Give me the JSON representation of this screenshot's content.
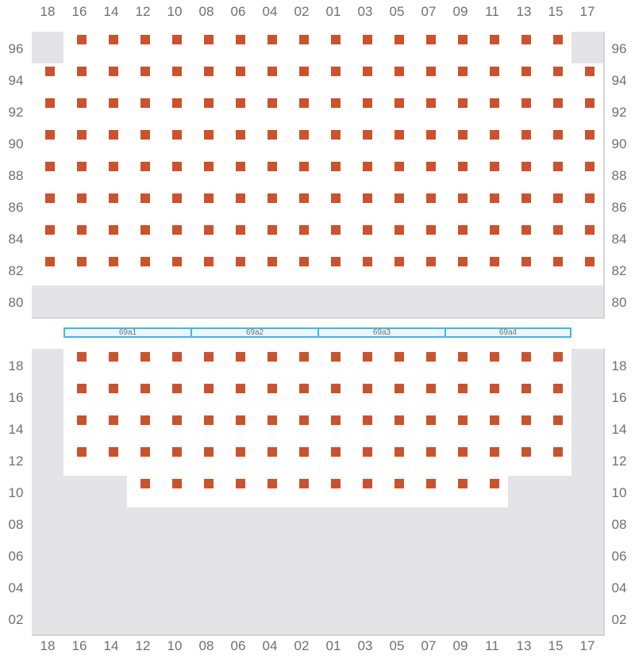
{
  "columns": [
    "18",
    "16",
    "14",
    "12",
    "10",
    "08",
    "06",
    "04",
    "02",
    "01",
    "03",
    "05",
    "07",
    "09",
    "11",
    "13",
    "15",
    "17"
  ],
  "cell_codes": {
    "O": "occupied",
    "E": "empty",
    "U": "unavailable"
  },
  "colors": {
    "occupied": "#cd522a",
    "unavailable": "#e4e4e6",
    "empty": "#ffffff",
    "segment_border": "#3bb9f0"
  },
  "top_section": {
    "rows": [
      {
        "label": "96",
        "cells": "UOOOOOOOOOOOOOOOOU"
      },
      {
        "label": "94",
        "cells": "OOOOOOOOOOOOOOOOOO"
      },
      {
        "label": "92",
        "cells": "OOOOOOOOOOOOOOOOOO"
      },
      {
        "label": "90",
        "cells": "OOOOOOOOOOOOOOOOOO"
      },
      {
        "label": "88",
        "cells": "OOOOOOOOOOOOOOOOOO"
      },
      {
        "label": "86",
        "cells": "OOOOOOOOOOOOOOOOOO"
      },
      {
        "label": "84",
        "cells": "OOOOOOOOOOOOOOOOOO"
      },
      {
        "label": "82",
        "cells": "OOOOOOOOOOOOOOOOOO"
      },
      {
        "label": "80",
        "cells": "UUUUUUUUUUUUUUUUUU"
      }
    ]
  },
  "segments": [
    "69a1",
    "69a2",
    "69a3",
    "69a4"
  ],
  "bottom_section": {
    "rows": [
      {
        "label": "18",
        "cells": "UOOOOOOOOOOOOOOOOU"
      },
      {
        "label": "16",
        "cells": "UOOOOOOOOOOOOOOOOU"
      },
      {
        "label": "14",
        "cells": "UOOOOOOOOOOOOOOOOU"
      },
      {
        "label": "12",
        "cells": "UOOOOOOOOOOOOOOOOU"
      },
      {
        "label": "10",
        "cells": "UUUOOOOOOOOOOOOUUU"
      },
      {
        "label": "08",
        "cells": "UUUUUUUUUUUUUUUUUU"
      },
      {
        "label": "06",
        "cells": "UUUUUUUUUUUUUUUUUU"
      },
      {
        "label": "04",
        "cells": "UUUUUUUUUUUUUUUUUU"
      },
      {
        "label": "02",
        "cells": "UUUUUUUUUUUUUUUUUU"
      }
    ]
  }
}
